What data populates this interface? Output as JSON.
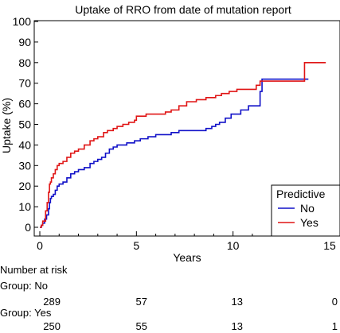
{
  "chart_data": {
    "type": "line",
    "title": "Uptake of RRO from date of mutation report",
    "xlabel": "Years",
    "ylabel": "Uptake (%)",
    "xlim": [
      0,
      15
    ],
    "ylim": [
      0,
      100
    ],
    "x_ticks": [
      0,
      5,
      10,
      15
    ],
    "y_ticks": [
      0,
      10,
      20,
      30,
      40,
      50,
      60,
      70,
      80,
      90,
      100
    ],
    "x_minor_step": 1,
    "grid": false,
    "legend": {
      "title": "Predictive",
      "placement": "bottom-right"
    },
    "series": [
      {
        "name": "No",
        "color": "#1010c8",
        "step_points": [
          [
            0,
            0
          ],
          [
            0.08,
            1
          ],
          [
            0.15,
            2
          ],
          [
            0.25,
            4
          ],
          [
            0.35,
            6
          ],
          [
            0.45,
            9
          ],
          [
            0.5,
            12
          ],
          [
            0.55,
            14
          ],
          [
            0.6,
            15
          ],
          [
            0.7,
            16
          ],
          [
            0.8,
            18
          ],
          [
            0.9,
            20
          ],
          [
            1.0,
            21
          ],
          [
            1.2,
            22
          ],
          [
            1.4,
            24
          ],
          [
            1.6,
            26
          ],
          [
            1.8,
            27
          ],
          [
            2.0,
            28
          ],
          [
            2.3,
            29
          ],
          [
            2.6,
            31
          ],
          [
            2.8,
            32
          ],
          [
            3.0,
            33
          ],
          [
            3.2,
            34
          ],
          [
            3.4,
            36
          ],
          [
            3.6,
            38
          ],
          [
            3.8,
            39
          ],
          [
            4.0,
            40
          ],
          [
            4.5,
            41
          ],
          [
            4.9,
            42
          ],
          [
            5.2,
            43
          ],
          [
            5.6,
            44
          ],
          [
            6.0,
            45
          ],
          [
            6.8,
            46
          ],
          [
            7.2,
            47
          ],
          [
            8.6,
            48
          ],
          [
            8.9,
            49
          ],
          [
            9.1,
            50
          ],
          [
            9.3,
            51
          ],
          [
            9.6,
            53
          ],
          [
            9.9,
            55
          ],
          [
            10.4,
            57
          ],
          [
            10.8,
            59
          ],
          [
            11.4,
            66
          ],
          [
            11.5,
            72
          ],
          [
            13.9,
            72
          ]
        ]
      },
      {
        "name": "Yes",
        "color": "#e01515",
        "step_points": [
          [
            0,
            0
          ],
          [
            0.08,
            1
          ],
          [
            0.15,
            3
          ],
          [
            0.3,
            8
          ],
          [
            0.38,
            12
          ],
          [
            0.45,
            17
          ],
          [
            0.5,
            21
          ],
          [
            0.55,
            22
          ],
          [
            0.6,
            24
          ],
          [
            0.7,
            26
          ],
          [
            0.8,
            28
          ],
          [
            0.9,
            30
          ],
          [
            1.0,
            31
          ],
          [
            1.2,
            32
          ],
          [
            1.4,
            34
          ],
          [
            1.6,
            36
          ],
          [
            1.8,
            37
          ],
          [
            2.0,
            38
          ],
          [
            2.3,
            40
          ],
          [
            2.6,
            42
          ],
          [
            2.8,
            43
          ],
          [
            3.0,
            44
          ],
          [
            3.3,
            46
          ],
          [
            3.5,
            47
          ],
          [
            3.8,
            48
          ],
          [
            4.0,
            49
          ],
          [
            4.3,
            50
          ],
          [
            4.6,
            51
          ],
          [
            4.9,
            52
          ],
          [
            5.0,
            54
          ],
          [
            5.5,
            55
          ],
          [
            6.5,
            56
          ],
          [
            6.8,
            57
          ],
          [
            7.2,
            59
          ],
          [
            7.6,
            61
          ],
          [
            8.1,
            62
          ],
          [
            8.6,
            63
          ],
          [
            9.1,
            64
          ],
          [
            9.4,
            65
          ],
          [
            9.8,
            66
          ],
          [
            10.2,
            67
          ],
          [
            11.2,
            69
          ],
          [
            11.4,
            71
          ],
          [
            13.6,
            71
          ],
          [
            13.7,
            80
          ],
          [
            14.8,
            80
          ]
        ]
      }
    ]
  },
  "risk_table": {
    "heading": "Number at risk",
    "groups": [
      {
        "label": "Group: No",
        "counts": [
          "289",
          "57",
          "13",
          "0"
        ]
      },
      {
        "label": "Group: Yes",
        "counts": [
          "250",
          "55",
          "13",
          "1"
        ]
      }
    ]
  }
}
